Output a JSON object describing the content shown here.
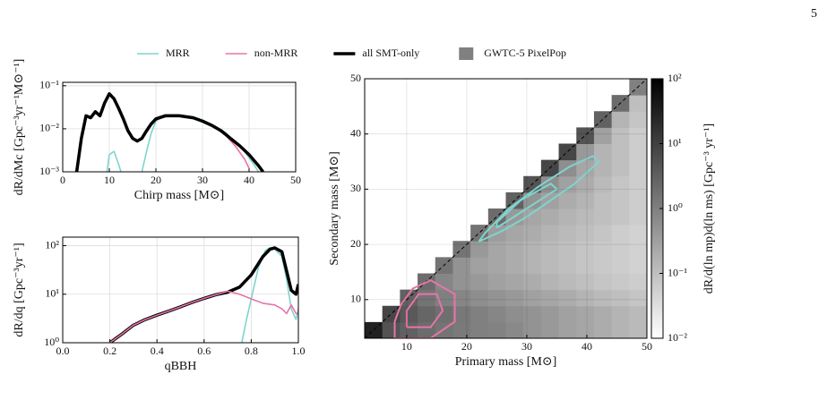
{
  "page_number": "5",
  "chart_data": [
    {
      "type": "line",
      "xlabel": "Chirp mass [M⊙]",
      "ylabel": "dR/dMc [Gpc⁻³yr⁻¹M⊙⁻¹]",
      "xlim": [
        0,
        50
      ],
      "xticks": [
        0,
        10,
        20,
        30,
        40,
        50
      ],
      "ylim": [
        0.001,
        0.12
      ],
      "ylog": true,
      "grid": true,
      "yticks": [
        {
          "value": 0.001,
          "label": "10⁻³"
        },
        {
          "value": 0.01,
          "label": "10⁻²"
        },
        {
          "value": 0.1,
          "label": "10⁻¹"
        }
      ],
      "series": [
        {
          "name": "MRR",
          "color": "#7fd4cf",
          "linewidth": 1.6,
          "x": [
            9.5,
            10,
            11,
            12,
            12.5,
            15,
            17,
            18,
            19,
            20,
            22,
            25,
            28,
            30,
            33,
            35,
            37,
            39,
            41,
            42
          ],
          "values": [
            0.001,
            0.0025,
            0.003,
            0.0015,
            0.001,
            null,
            0.001,
            0.003,
            0.008,
            0.015,
            0.021,
            0.021,
            0.019,
            0.016,
            0.011,
            0.008,
            0.005,
            0.003,
            0.0015,
            0.001
          ]
        },
        {
          "name": "non-MRR",
          "color": "#e874a8",
          "linewidth": 1.6,
          "x": [
            3,
            4,
            5,
            6,
            7,
            8,
            9,
            10,
            11,
            12,
            13,
            14,
            15,
            16,
            17,
            18,
            20,
            22,
            25,
            28,
            30,
            33,
            35,
            37,
            39,
            40
          ],
          "values": [
            0.001,
            0.006,
            0.02,
            0.018,
            0.025,
            0.02,
            0.04,
            0.068,
            0.05,
            0.03,
            0.017,
            0.009,
            0.006,
            0.005,
            0.006,
            0.009,
            0.016,
            0.019,
            0.02,
            0.018,
            0.015,
            0.01,
            0.007,
            0.004,
            0.002,
            0.0012
          ]
        },
        {
          "name": "all SMT-only",
          "color": "#000000",
          "linewidth": 3.5,
          "x": [
            3,
            4,
            5,
            6,
            7,
            8,
            9,
            10,
            11,
            12,
            13,
            14,
            15,
            16,
            17,
            18,
            19,
            20,
            22,
            25,
            28,
            30,
            32,
            34,
            36,
            38,
            40,
            42,
            43
          ],
          "values": [
            0.001,
            0.006,
            0.02,
            0.018,
            0.025,
            0.02,
            0.04,
            0.065,
            0.05,
            0.03,
            0.017,
            0.009,
            0.006,
            0.0052,
            0.006,
            0.009,
            0.013,
            0.017,
            0.02,
            0.02,
            0.018,
            0.015,
            0.012,
            0.009,
            0.006,
            0.004,
            0.0025,
            0.0014,
            0.001
          ]
        }
      ]
    },
    {
      "type": "line",
      "xlabel": "qBBH",
      "ylabel": "dR/dq [Gpc⁻³yr⁻¹]",
      "xlim": [
        0,
        1
      ],
      "xticks": [
        {
          "value": 0,
          "label": "0.0"
        },
        0.2,
        0.4,
        0.6,
        0.8,
        {
          "value": 1,
          "label": "1.0"
        }
      ],
      "ylim": [
        1,
        150
      ],
      "ylog": true,
      "grid": true,
      "yticks": [
        {
          "value": 1,
          "label": "10⁰"
        },
        {
          "value": 10,
          "label": "10¹"
        },
        {
          "value": 100,
          "label": "10²"
        }
      ],
      "series": [
        {
          "color": "#7fd4cf",
          "linewidth": 1.6,
          "x": [
            0.76,
            0.78,
            0.8,
            0.83,
            0.86,
            0.88,
            0.9,
            0.93,
            0.95,
            0.97,
            0.99,
            1.0
          ],
          "values": [
            1,
            3,
            8,
            35,
            80,
            90,
            85,
            60,
            20,
            5,
            3,
            5
          ]
        },
        {
          "color": "#000000",
          "linewidth": 3.5,
          "x": [
            0.2,
            0.25,
            0.3,
            0.35,
            0.4,
            0.45,
            0.5,
            0.55,
            0.6,
            0.65,
            0.7,
            0.75,
            0.8,
            0.85,
            0.88,
            0.9,
            0.93,
            0.95,
            0.97,
            0.99,
            1.0
          ],
          "values": [
            1,
            1.5,
            2.3,
            3,
            3.7,
            4.5,
            5.5,
            6.8,
            8.2,
            9.8,
            11,
            14,
            25,
            60,
            85,
            90,
            75,
            30,
            12,
            10,
            16
          ]
        },
        {
          "color": "#e874a8",
          "linewidth": 1.6,
          "x": [
            0.2,
            0.25,
            0.3,
            0.35,
            0.4,
            0.45,
            0.5,
            0.55,
            0.6,
            0.65,
            0.7,
            0.75,
            0.8,
            0.85,
            0.9,
            0.93,
            0.95,
            0.97,
            0.99,
            1.0
          ],
          "values": [
            1,
            1.5,
            2.3,
            3,
            3.7,
            4.5,
            5.5,
            6.8,
            8.2,
            9.8,
            11.5,
            10,
            8,
            6.5,
            6,
            5,
            4,
            6,
            4,
            4
          ]
        }
      ]
    },
    {
      "type": "heatmap",
      "name": "GWTC-5 PixelPop",
      "legend_color": "#808080",
      "xlabel": "Primary mass [M⊙]",
      "ylabel": "Secondary mass [M⊙]",
      "clabel": "dR/d(ln mp)d(ln ms) [Gpc⁻³ yr⁻¹]",
      "xlim": [
        3,
        50
      ],
      "ylim": [
        3,
        50
      ],
      "xticks": [
        10,
        20,
        30,
        40,
        50
      ],
      "yticks": [
        10,
        20,
        30,
        40,
        50
      ],
      "grid": true,
      "clim": [
        0.01,
        100
      ],
      "clog": true,
      "cticks": [
        {
          "value": 0.01,
          "label": "10⁻²"
        },
        {
          "value": 0.1,
          "label": "10⁻¹"
        },
        {
          "value": 1,
          "label": "10⁰"
        },
        {
          "value": 10,
          "label": "10¹"
        },
        {
          "value": 100,
          "label": "10²"
        }
      ],
      "bins": [
        3,
        5.9375,
        8.875,
        11.8125,
        14.75,
        17.6875,
        20.625,
        23.5625,
        26.5,
        29.4375,
        32.375,
        35.3125,
        38.25,
        41.1875,
        44.125,
        47.0625,
        50
      ],
      "z": [
        [
          30,
          5,
          3,
          2,
          1.5,
          1.2,
          1.0,
          0.9,
          0.7,
          0.5,
          0.4,
          0.3,
          0.25,
          0.2,
          0.15,
          0.12
        ],
        [
          null,
          8,
          4,
          2.5,
          1.8,
          1.3,
          1.0,
          0.8,
          0.6,
          0.5,
          0.4,
          0.3,
          0.25,
          0.2,
          0.15,
          0.12
        ],
        [
          null,
          null,
          3,
          1.5,
          1.0,
          0.8,
          0.6,
          0.5,
          0.4,
          0.3,
          0.25,
          0.2,
          0.15,
          0.12,
          0.1,
          0.08
        ],
        [
          null,
          null,
          null,
          2,
          0.8,
          0.5,
          0.4,
          0.3,
          0.25,
          0.2,
          0.15,
          0.12,
          0.1,
          0.08,
          0.07,
          0.06
        ],
        [
          null,
          null,
          null,
          null,
          1.5,
          0.5,
          0.3,
          0.25,
          0.2,
          0.15,
          0.12,
          0.1,
          0.08,
          0.07,
          0.06,
          0.05
        ],
        [
          null,
          null,
          null,
          null,
          null,
          1.5,
          0.4,
          0.25,
          0.2,
          0.15,
          0.12,
          0.1,
          0.08,
          0.07,
          0.06,
          0.05
        ],
        [
          null,
          null,
          null,
          null,
          null,
          null,
          1.5,
          0.35,
          0.25,
          0.2,
          0.15,
          0.12,
          0.1,
          0.08,
          0.06,
          0.05
        ],
        [
          null,
          null,
          null,
          null,
          null,
          null,
          null,
          2,
          0.4,
          0.25,
          0.2,
          0.15,
          0.12,
          0.1,
          0.08,
          0.06
        ],
        [
          null,
          null,
          null,
          null,
          null,
          null,
          null,
          null,
          3,
          0.5,
          0.3,
          0.2,
          0.15,
          0.1,
          0.08,
          0.06
        ],
        [
          null,
          null,
          null,
          null,
          null,
          null,
          null,
          null,
          null,
          5,
          0.6,
          0.3,
          0.2,
          0.12,
          0.08,
          0.06
        ],
        [
          null,
          null,
          null,
          null,
          null,
          null,
          null,
          null,
          null,
          null,
          8,
          0.6,
          0.25,
          0.15,
          0.1,
          0.06
        ],
        [
          null,
          null,
          null,
          null,
          null,
          null,
          null,
          null,
          null,
          null,
          null,
          8,
          0.4,
          0.15,
          0.1,
          0.06
        ],
        [
          null,
          null,
          null,
          null,
          null,
          null,
          null,
          null,
          null,
          null,
          null,
          null,
          5,
          0.3,
          0.1,
          0.06
        ],
        [
          null,
          null,
          null,
          null,
          null,
          null,
          null,
          null,
          null,
          null,
          null,
          null,
          null,
          3,
          0.15,
          0.08
        ],
        [
          null,
          null,
          null,
          null,
          null,
          null,
          null,
          null,
          null,
          null,
          null,
          null,
          null,
          null,
          2,
          0.1
        ],
        [
          null,
          null,
          null,
          null,
          null,
          null,
          null,
          null,
          null,
          null,
          null,
          null,
          null,
          null,
          null,
          1
        ]
      ],
      "contours": [
        {
          "color": "#7fd4cf",
          "x": [
            22,
            26,
            30,
            34,
            38,
            42,
            41,
            37,
            32,
            27,
            23,
            22
          ],
          "y": [
            20.5,
            22.5,
            25,
            28,
            31,
            35,
            36,
            34,
            30.5,
            26.5,
            22,
            20.5
          ]
        },
        {
          "color": "#7fd4cf",
          "x": [
            25,
            30,
            35,
            34,
            29,
            25,
            25
          ],
          "y": [
            23,
            26.5,
            30,
            31,
            28,
            24,
            23
          ]
        },
        {
          "color": "#e874a8",
          "x": [
            8,
            14,
            18,
            18,
            14,
            11,
            9,
            8,
            8
          ],
          "y": [
            3,
            3,
            6,
            11,
            13.5,
            12,
            9,
            6,
            3
          ]
        },
        {
          "color": "#e874a8",
          "x": [
            10,
            14,
            16,
            15,
            12,
            10,
            10
          ],
          "y": [
            5,
            5,
            8,
            11,
            11,
            8,
            5
          ]
        }
      ]
    }
  ]
}
